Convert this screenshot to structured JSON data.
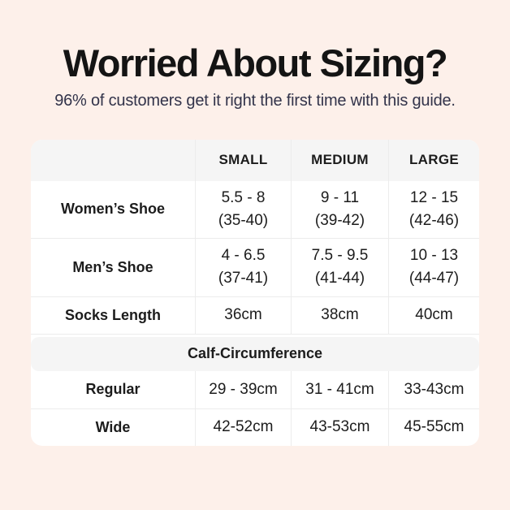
{
  "page": {
    "background_color": "#fdf0ea",
    "title": "Worried About Sizing?",
    "subtitle": "96% of customers get it right the first time with this guide.",
    "title_color": "#141414",
    "subtitle_color": "#32334a"
  },
  "size_table": {
    "style": {
      "table_bg": "#ffffff",
      "band_bg": "#f5f5f5",
      "border_color": "#ececec",
      "text_color": "#1c1c1c"
    },
    "header": [
      "SMALL",
      "MEDIUM",
      "LARGE"
    ],
    "rows": [
      {
        "label": "Women’s Shoe",
        "values": [
          [
            "5.5 - 8",
            "(35-40)"
          ],
          [
            "9 - 11",
            "(39-42)"
          ],
          [
            "12 - 15",
            "(42-46)"
          ]
        ]
      },
      {
        "label": "Men’s Shoe",
        "values": [
          [
            "4 - 6.5",
            "(37-41)"
          ],
          [
            "7.5 - 9.5",
            "(41-44)"
          ],
          [
            "10 - 13",
            "(44-47)"
          ]
        ]
      },
      {
        "label": "Socks Length",
        "values": [
          [
            "36cm"
          ],
          [
            "38cm"
          ],
          [
            "40cm"
          ]
        ]
      }
    ],
    "section_header": "Calf-Circumference",
    "section_rows": [
      {
        "label": "Regular",
        "values": [
          [
            "29 - 39cm"
          ],
          [
            "31 - 41cm"
          ],
          [
            "33-43cm"
          ]
        ]
      },
      {
        "label": "Wide",
        "values": [
          [
            "42-52cm"
          ],
          [
            "43-53cm"
          ],
          [
            "45-55cm"
          ]
        ]
      }
    ]
  }
}
